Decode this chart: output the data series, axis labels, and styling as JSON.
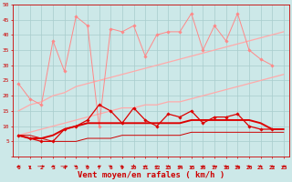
{
  "x": [
    0,
    1,
    2,
    3,
    4,
    5,
    6,
    7,
    8,
    9,
    10,
    11,
    12,
    13,
    14,
    15,
    16,
    17,
    18,
    19,
    20,
    21,
    22,
    23
  ],
  "series": [
    {
      "name": "rafales_zigzag",
      "color": "#ff8888",
      "linewidth": 0.7,
      "marker": "D",
      "markersize": 1.8,
      "zorder": 3,
      "values": [
        24,
        19,
        17,
        38,
        28,
        46,
        43,
        10,
        42,
        41,
        43,
        33,
        40,
        41,
        41,
        47,
        35,
        43,
        38,
        47,
        35,
        32,
        30,
        null
      ]
    },
    {
      "name": "trend_upper",
      "color": "#ffaaaa",
      "linewidth": 0.9,
      "marker": null,
      "markersize": 0,
      "zorder": 2,
      "values": [
        15,
        17,
        18,
        20,
        21,
        23,
        24,
        25,
        26,
        27,
        28,
        29,
        30,
        31,
        32,
        33,
        34,
        35,
        36,
        37,
        38,
        39,
        40,
        41
      ]
    },
    {
      "name": "trend_lower",
      "color": "#ffaaaa",
      "linewidth": 0.9,
      "marker": null,
      "markersize": 0,
      "zorder": 2,
      "values": [
        7,
        8,
        9,
        10,
        11,
        12,
        13,
        14,
        15,
        16,
        16,
        17,
        17,
        18,
        18,
        19,
        20,
        21,
        22,
        23,
        24,
        25,
        26,
        27
      ]
    },
    {
      "name": "vent_mean_zigzag",
      "color": "#dd0000",
      "linewidth": 0.9,
      "marker": "D",
      "markersize": 1.8,
      "zorder": 4,
      "values": [
        7,
        6,
        5,
        5,
        9,
        10,
        12,
        17,
        15,
        11,
        16,
        12,
        10,
        14,
        13,
        15,
        11,
        13,
        13,
        14,
        10,
        9,
        9,
        null
      ]
    },
    {
      "name": "vent_mean_smooth",
      "color": "#dd0000",
      "linewidth": 1.4,
      "marker": null,
      "markersize": 0,
      "zorder": 3,
      "values": [
        7,
        6,
        6,
        7,
        9,
        10,
        11,
        11,
        11,
        11,
        11,
        11,
        11,
        11,
        11,
        12,
        12,
        12,
        12,
        12,
        12,
        11,
        9,
        9
      ]
    },
    {
      "name": "baseline",
      "color": "#cc0000",
      "linewidth": 0.7,
      "marker": null,
      "markersize": 0,
      "zorder": 2,
      "values": [
        7,
        7,
        6,
        5,
        5,
        5,
        6,
        6,
        6,
        7,
        7,
        7,
        7,
        7,
        7,
        8,
        8,
        8,
        8,
        8,
        8,
        8,
        8,
        8
      ]
    }
  ],
  "arrow_angles_deg": [
    225,
    270,
    0,
    225,
    0,
    315,
    315,
    225,
    315,
    315,
    90,
    225,
    45,
    315,
    45,
    270,
    225,
    315,
    315,
    315,
    315,
    315,
    315,
    225
  ],
  "xlabel": "Vent moyen/en rafales ( km/h )",
  "ylim": [
    0,
    50
  ],
  "xlim": [
    -0.5,
    23.5
  ],
  "yticks": [
    0,
    5,
    10,
    15,
    20,
    25,
    30,
    35,
    40,
    45,
    50
  ],
  "xticks": [
    0,
    1,
    2,
    3,
    4,
    5,
    6,
    7,
    8,
    9,
    10,
    11,
    12,
    13,
    14,
    15,
    16,
    17,
    18,
    19,
    20,
    21,
    22,
    23
  ],
  "bg_color": "#cce8e8",
  "grid_color": "#a8cccc",
  "axis_color": "#cc0000",
  "xlabel_fontsize": 6.5,
  "tick_fontsize": 4.5
}
